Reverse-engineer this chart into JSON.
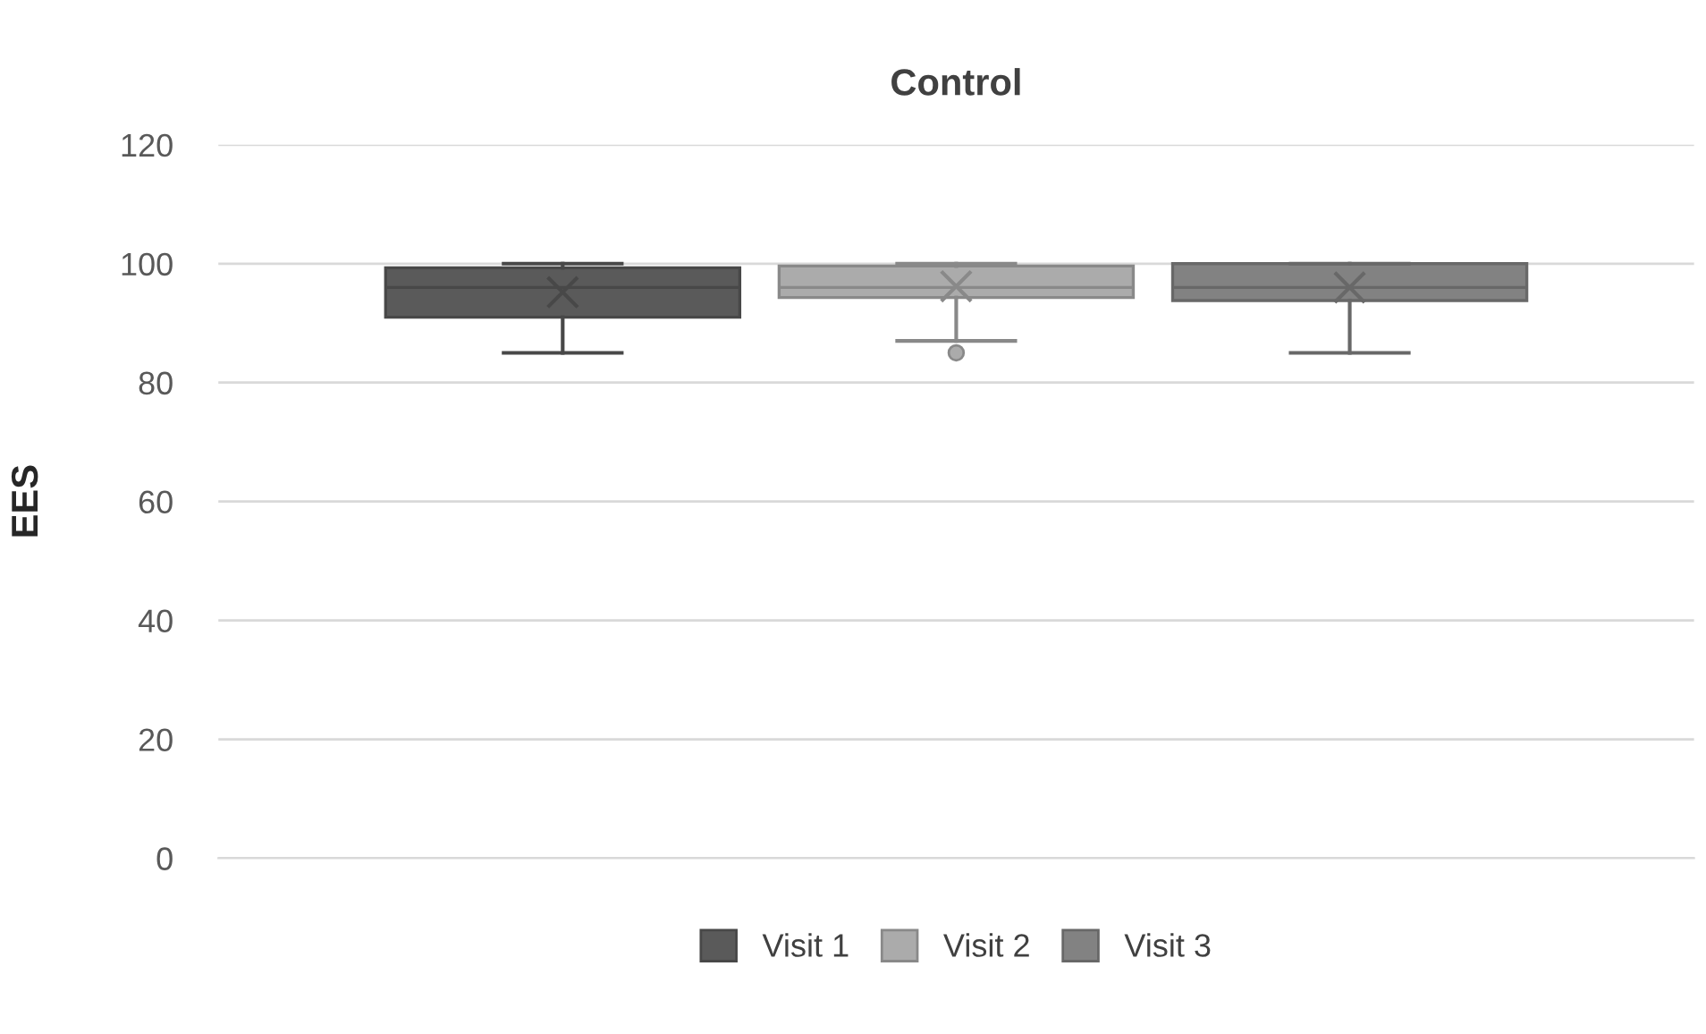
{
  "chart_data": {
    "type": "box",
    "title": "Control",
    "ylabel": "EES",
    "categories": [
      null
    ],
    "series": [
      {
        "name": "Visit 1",
        "color": "#5a5a5a",
        "boxes": [
          {
            "low": 85,
            "q1": 91,
            "median": 96,
            "q3": 99.3,
            "high": 100,
            "mean": 95.2
          }
        ]
      },
      {
        "name": "Visit 2",
        "color": "#ababab",
        "boxes": [
          {
            "low": 87,
            "q1": 94.3,
            "median": 96,
            "q3": 99.6,
            "high": 100,
            "mean": 96.2,
            "outliers": [
              85
            ]
          }
        ]
      },
      {
        "name": "Visit 3",
        "color": "#828282",
        "boxes": [
          {
            "low": 85,
            "q1": 93.8,
            "median": 96,
            "q3": 100,
            "high": 100,
            "mean": 96
          }
        ]
      }
    ],
    "ylim": [
      0,
      120
    ],
    "yticks": [
      0,
      20,
      40,
      60,
      80,
      100,
      120
    ],
    "grid": "y",
    "legend": "bottom"
  }
}
